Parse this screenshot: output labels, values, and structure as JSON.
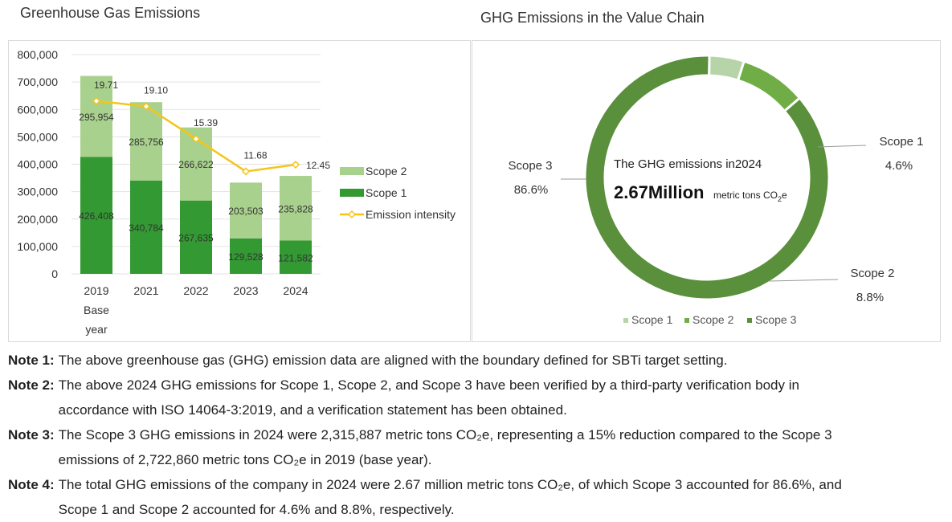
{
  "left_title": "Greenhouse Gas Emissions",
  "right_title": "GHG Emissions in the Value Chain",
  "chart_data": [
    {
      "type": "bar",
      "stacked": true,
      "categories": [
        "2019",
        "2021",
        "2022",
        "2023",
        "2024"
      ],
      "category_sublabels": [
        "Base",
        "",
        "",
        "",
        ""
      ],
      "category_sublabels2": [
        "year",
        "",
        "",
        "",
        ""
      ],
      "series": [
        {
          "name": "Scope 1",
          "values": [
            426408,
            340784,
            267635,
            129528,
            121582
          ],
          "labels": [
            "426,408",
            "340,784",
            "267,635",
            "129,528",
            "121,582"
          ],
          "color": "#339933"
        },
        {
          "name": "Scope 2",
          "values": [
            295954,
            285756,
            266622,
            203503,
            235828
          ],
          "labels": [
            "295,954",
            "285,756",
            "266,622",
            "203,503",
            "235,828"
          ],
          "color": "#a9d18e"
        }
      ],
      "line": {
        "name": "Emission intensity",
        "values": [
          19.71,
          19.1,
          15.39,
          11.68,
          12.45
        ],
        "labels": [
          "19.71",
          "19.10",
          "15.39",
          "11.68",
          "12.45"
        ],
        "color": "#f5c518"
      },
      "ylim": [
        0,
        800000
      ],
      "yticks": [
        "800,000",
        "700,000",
        "600,000",
        "500,000",
        "400,000",
        "300,000",
        "200,000",
        "100,000",
        "0"
      ],
      "grid": true,
      "legend": "right"
    },
    {
      "type": "pie",
      "donut": true,
      "slices": [
        {
          "name": "Scope 1",
          "value": 4.6,
          "label": "4.6%",
          "color": "#b7d4a8"
        },
        {
          "name": "Scope 2",
          "value": 8.8,
          "label": "8.8%",
          "color": "#70ad47"
        },
        {
          "name": "Scope 3",
          "value": 86.6,
          "label": "86.6%",
          "color": "#5a8f3c"
        }
      ],
      "center_line1": "The GHG emissions in2024",
      "center_value": "2.67Million",
      "center_unit": "metric tons CO",
      "center_unit_sub": "2",
      "center_unit_end": "e",
      "legend": "bottom"
    }
  ],
  "notes": [
    {
      "label": "Note 1:",
      "lines": [
        "The above greenhouse gas (GHG) emission data are aligned with the boundary defined for SBTi target setting."
      ]
    },
    {
      "label": "Note 2:",
      "lines": [
        "The above 2024 GHG emissions for Scope 1, Scope 2, and Scope 3 have been verified by a third-party verification body in",
        "accordance with ISO 14064-3:2019, and a verification statement has been obtained."
      ]
    },
    {
      "label": "Note 3:",
      "lines": [
        "The Scope 3 GHG emissions in 2024 were 2,315,887 metric tons CO₂e, representing a 15% reduction compared to the Scope 3",
        "emissions of 2,722,860 metric tons CO₂e in 2019 (base year)."
      ]
    },
    {
      "label": "Note 4:",
      "lines": [
        "The total GHG emissions of the company in 2024 were 2.67 million metric tons CO₂e, of which Scope 3 accounted for 86.6%, and",
        "Scope 1 and Scope 2 accounted for 4.6% and 8.8%, respectively."
      ]
    }
  ]
}
